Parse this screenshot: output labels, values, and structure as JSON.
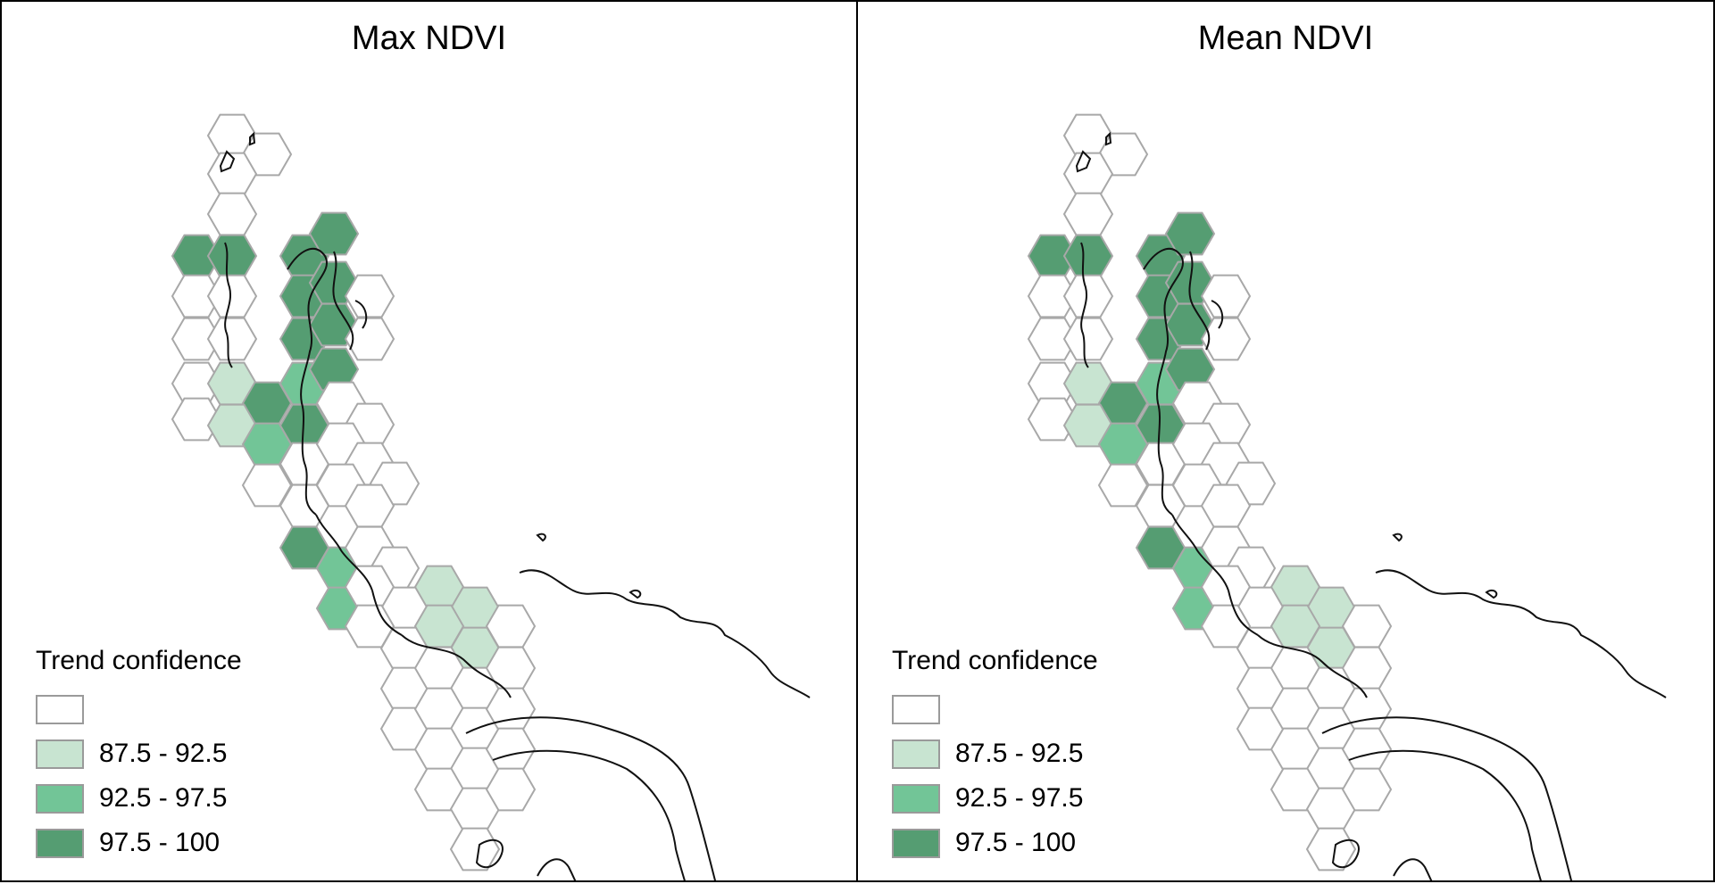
{
  "colors": {
    "none": "#ffffff",
    "low": "#c8e4d1",
    "mid": "#72c597",
    "high": "#559d72",
    "hex_stroke": "#a8a8a8",
    "coast": "#111111"
  },
  "panels": [
    {
      "title": "Max NDVI"
    },
    {
      "title": "Mean NDVI"
    }
  ],
  "legend": {
    "title": "Trend confidence",
    "items": [
      {
        "label": "",
        "color_key": "none"
      },
      {
        "label": "87.5 - 92.5",
        "color_key": "low"
      },
      {
        "label": "92.5 - 97.5",
        "color_key": "mid"
      },
      {
        "label": "97.5 - 100",
        "color_key": "high"
      }
    ]
  }
}
